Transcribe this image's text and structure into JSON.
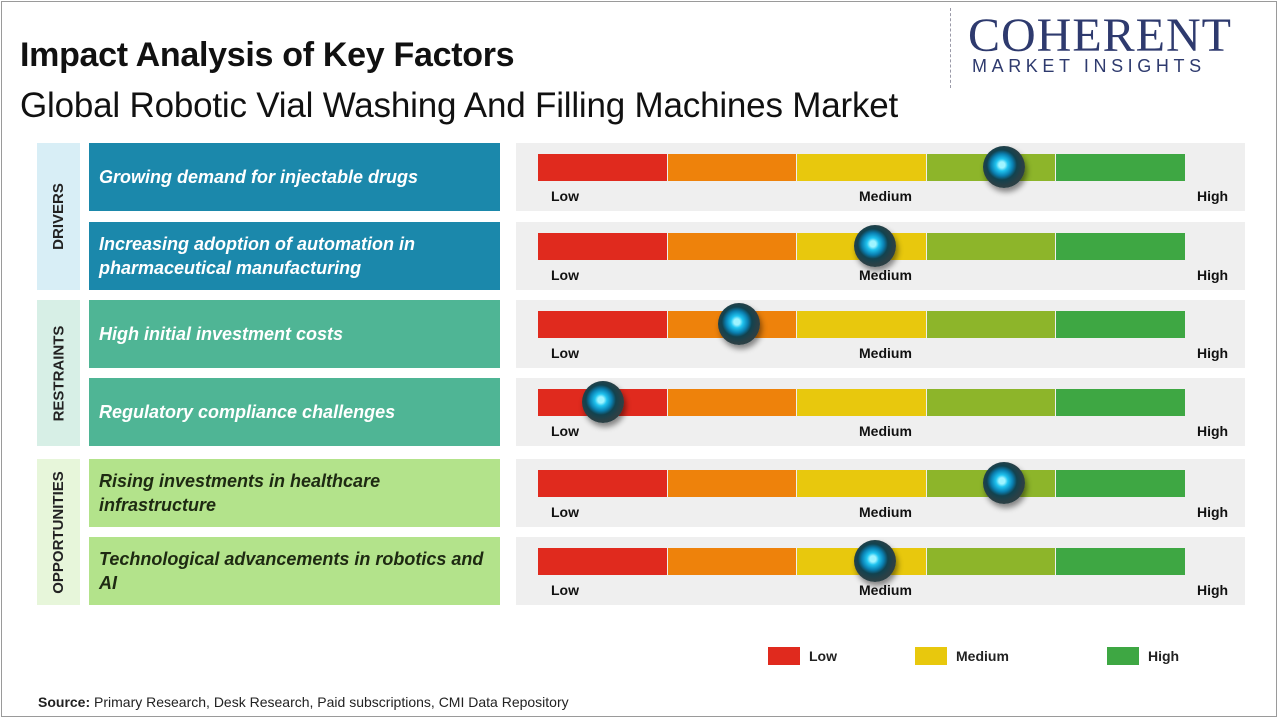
{
  "header": {
    "title": "Impact Analysis of Key Factors",
    "subtitle": "Global Robotic Vial Washing And Filling Machines Market"
  },
  "logo": {
    "top_line": "COHERENT",
    "bottom_line": "MARKET INSIGHTS"
  },
  "colors": {
    "segments": [
      "#e02a1e",
      "#ee820b",
      "#e8c80d",
      "#8db52a",
      "#3ea743"
    ],
    "drivers_bg": "#1b88ab",
    "restraints_bg": "#4fb595",
    "opportunities_bg": "#b3e38b",
    "drivers_cat_bg": "#d8eef6",
    "restraints_cat_bg": "#d7efe6",
    "opportunities_cat_bg": "#e7f6da"
  },
  "chart_data": {
    "type": "gauge-scale",
    "title": "Impact Analysis of Key Factors",
    "scale_labels": [
      "Low",
      "Medium",
      "High"
    ],
    "scale_range": [
      0,
      5
    ],
    "categories": [
      {
        "name": "DRIVERS",
        "factors": [
          {
            "label": "Growing demand for injectable drugs",
            "value": 3.6
          },
          {
            "label": "Increasing adoption of automation in pharmaceutical manufacturing",
            "value": 2.6
          }
        ]
      },
      {
        "name": "RESTRAINTS",
        "factors": [
          {
            "label": "High initial investment costs",
            "value": 1.55
          },
          {
            "label": "Regulatory compliance challenges",
            "value": 0.5
          }
        ]
      },
      {
        "name": "OPPORTUNITIES",
        "factors": [
          {
            "label": "Rising investments in healthcare infrastructure",
            "value": 3.6
          },
          {
            "label": "Technological advancements in robotics and AI",
            "value": 2.6
          }
        ]
      }
    ]
  },
  "legend": {
    "items": [
      {
        "label": "Low",
        "color": "#e02a1e"
      },
      {
        "label": "Medium",
        "color": "#e8c80d"
      },
      {
        "label": "High",
        "color": "#3ea743"
      }
    ]
  },
  "source": {
    "label": "Source:",
    "text": " Primary Research, Desk Research, Paid subscriptions, CMI Data Repository"
  }
}
